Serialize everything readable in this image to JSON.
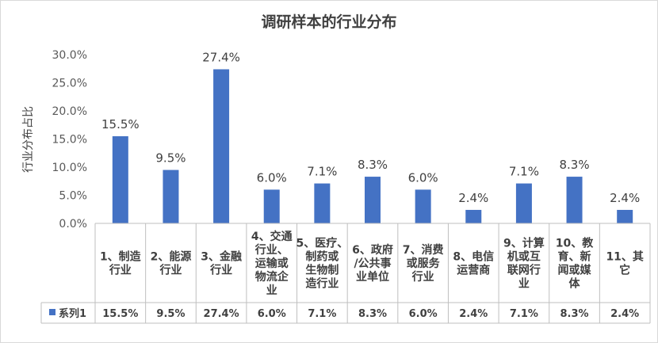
{
  "chart_data": {
    "type": "bar",
    "title": "调研样本的行业分布",
    "xlabel": "",
    "ylabel": "行业分布占比",
    "ylim": [
      0,
      0.3
    ],
    "yticks": [
      "0.0%",
      "5.0%",
      "10.0%",
      "15.0%",
      "20.0%",
      "25.0%",
      "30.0%"
    ],
    "ytick_values": [
      0,
      0.05,
      0.1,
      0.15,
      0.2,
      0.25,
      0.3
    ],
    "grid": false,
    "bar_color": "#4472c4",
    "legend_position": "data-table",
    "categories": [
      [
        "1、制造",
        "行业"
      ],
      [
        "2、能源",
        "行业"
      ],
      [
        "3、金融",
        "行业"
      ],
      [
        "4、交通",
        "行业、",
        "运输或",
        "物流企",
        "业"
      ],
      [
        "5、医疗、",
        "制药或",
        "生物制",
        "造行业"
      ],
      [
        "6、政府",
        "/公共事",
        "业单位"
      ],
      [
        "7、消费",
        "或服务",
        "行业"
      ],
      [
        "8、电信",
        "运营商"
      ],
      [
        "9、计算",
        "机或互",
        "联网行",
        "业"
      ],
      [
        "10、教",
        "育、新",
        "闻或媒",
        "体"
      ],
      [
        "11、其",
        "它"
      ]
    ],
    "series": [
      {
        "name": "系列1",
        "values": [
          0.155,
          0.095,
          0.274,
          0.06,
          0.071,
          0.083,
          0.06,
          0.024,
          0.071,
          0.083,
          0.024
        ],
        "labels": [
          "15.5%",
          "9.5%",
          "27.4%",
          "6.0%",
          "7.1%",
          "8.3%",
          "6.0%",
          "2.4%",
          "7.1%",
          "8.3%",
          "2.4%"
        ]
      }
    ]
  }
}
